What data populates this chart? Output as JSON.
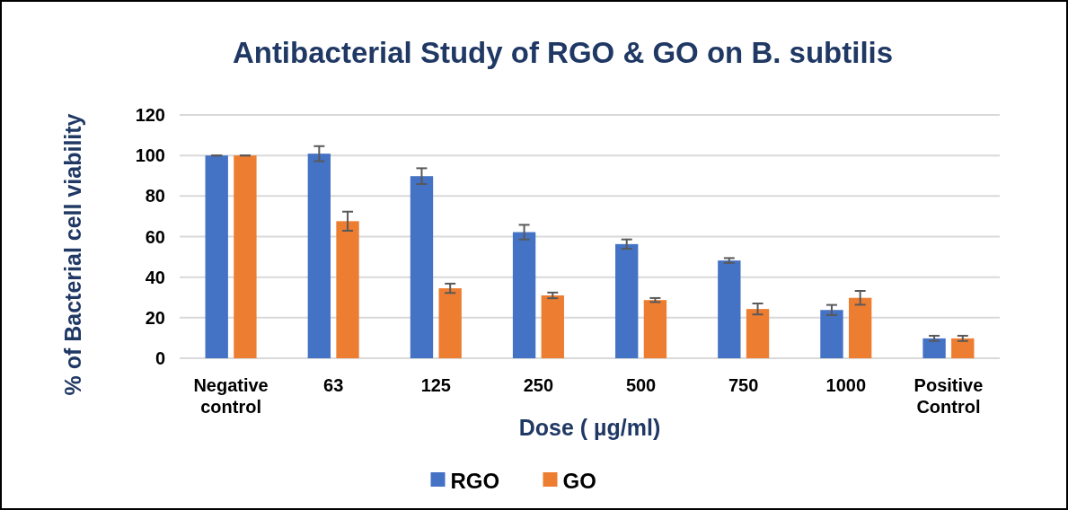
{
  "chart_data": {
    "type": "bar",
    "title": "Antibacterial  Study of RGO & GO on B. subtilis",
    "xlabel": "Dose ( µg/ml)",
    "ylabel": "% of Bacterial cell viability",
    "categories": [
      "Negative control",
      "63",
      "125",
      "250",
      "500",
      "750",
      "1000",
      "Positive Control"
    ],
    "series": [
      {
        "name": "RGO",
        "color": "#4472c4",
        "values": [
          100,
          100.9,
          89.8,
          62.2,
          56.3,
          48.2,
          23.8,
          9.8
        ],
        "errors": [
          0,
          3.7,
          3.9,
          3.6,
          2.3,
          1.2,
          2.5,
          1.3
        ]
      },
      {
        "name": "GO",
        "color": "#ed7d31",
        "values": [
          100,
          67.6,
          34.5,
          31,
          28.7,
          24.3,
          29.8,
          9.8
        ],
        "errors": [
          0,
          4.7,
          2.3,
          1.4,
          1,
          2.7,
          3.4,
          1.3
        ]
      }
    ],
    "ylim": [
      0,
      120
    ],
    "yticks": [
      0,
      20,
      40,
      60,
      80,
      100,
      120
    ],
    "grid": "y",
    "legend": "bottom"
  }
}
